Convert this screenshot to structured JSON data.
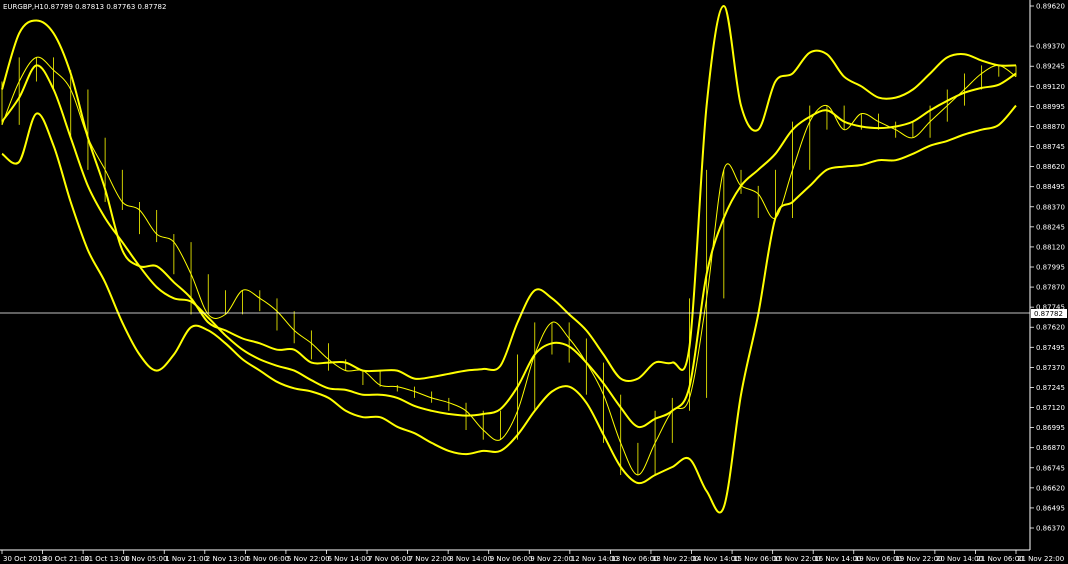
{
  "header": {
    "symbol": "EURGBP,H1",
    "ohlc": "0.87789 0.87813 0.87763 0.87782"
  },
  "price_marker": "0.87782",
  "colors": {
    "background": "#000000",
    "series": "#ffff00",
    "text": "#ffffff",
    "grid": "#ffffff"
  },
  "chart_data": {
    "type": "line",
    "title": "EURGBP,H1",
    "grid": false,
    "y_axis_position": "right",
    "ylim": [
      0.8637,
      0.8962
    ],
    "y_ticks": [
      "0.89620",
      "0.89370",
      "0.89245",
      "0.89120",
      "0.88995",
      "0.88870",
      "0.88745",
      "0.88620",
      "0.88495",
      "0.88370",
      "0.88245",
      "0.88120",
      "0.87995",
      "0.87870",
      "0.87745",
      "0.87620",
      "0.87495",
      "0.87370",
      "0.87245",
      "0.87120",
      "0.86995",
      "0.86870",
      "0.86745",
      "0.86620",
      "0.86495",
      "0.86370"
    ],
    "x_ticks": [
      "30 Oct 2018",
      "30 Oct 21:00",
      "31 Oct 13:00",
      "1 Nov 05:00",
      "1 Nov 21:00",
      "2 Nov 13:00",
      "5 Nov 06:00",
      "5 Nov 22:00",
      "6 Nov 14:00",
      "7 Nov 06:00",
      "7 Nov 22:00",
      "8 Nov 14:00",
      "9 Nov 06:00",
      "9 Nov 22:00",
      "12 Nov 14:00",
      "13 Nov 06:00",
      "13 Nov 22:00",
      "14 Nov 14:00",
      "15 Nov 06:00",
      "15 Nov 22:00",
      "16 Nov 14:00",
      "19 Nov 06:00",
      "19 Nov 22:00",
      "20 Nov 14:00",
      "21 Nov 06:00",
      "21 Nov 22:00"
    ],
    "current_price": 0.87782,
    "series": [
      {
        "values": [
          0.8888,
          0.8915,
          0.893,
          0.8922,
          0.891,
          0.888,
          0.886,
          0.884,
          0.8835,
          0.882,
          0.8815,
          0.8795,
          0.877,
          0.877,
          0.8785,
          0.878,
          0.8772,
          0.876,
          0.8752,
          0.8742,
          0.8735,
          0.8735,
          0.8726,
          0.8725,
          0.8722,
          0.8718,
          0.8715,
          0.871,
          0.8698,
          0.8692,
          0.871,
          0.8745,
          0.8765,
          0.8755,
          0.874,
          0.872,
          0.869,
          0.867,
          0.869,
          0.871,
          0.8718,
          0.878,
          0.886,
          0.885,
          0.8845,
          0.883,
          0.886,
          0.889,
          0.89,
          0.8885,
          0.8895,
          0.889,
          0.8885,
          0.888,
          0.889,
          0.89,
          0.891,
          0.892,
          0.8925,
          0.8918
        ]
      },
      {
        "values": [
          0.889,
          0.8905,
          0.8925,
          0.891,
          0.888,
          0.885,
          0.883,
          0.8815,
          0.88,
          0.8787,
          0.878,
          0.8778,
          0.8768,
          0.8757,
          0.8748,
          0.8742,
          0.8738,
          0.8735,
          0.8729,
          0.8724,
          0.8723,
          0.872,
          0.872,
          0.8718,
          0.8713,
          0.871,
          0.8708,
          0.8707,
          0.8708,
          0.8711,
          0.8725,
          0.8745,
          0.8752,
          0.875,
          0.874,
          0.8727,
          0.8712,
          0.87,
          0.8705,
          0.871,
          0.8725,
          0.8795,
          0.883,
          0.885,
          0.886,
          0.887,
          0.8885,
          0.8893,
          0.8897,
          0.889,
          0.8887,
          0.8886,
          0.8887,
          0.889,
          0.8897,
          0.8903,
          0.8908,
          0.8911,
          0.8913,
          0.892
        ]
      },
      {
        "values": [
          0.891,
          0.8945,
          0.8953,
          0.8945,
          0.892,
          0.888,
          0.8848,
          0.881,
          0.88,
          0.88,
          0.879,
          0.878,
          0.8765,
          0.876,
          0.8755,
          0.8752,
          0.8748,
          0.8748,
          0.874,
          0.874,
          0.874,
          0.8735,
          0.8735,
          0.8735,
          0.873,
          0.8731,
          0.8733,
          0.8735,
          0.8736,
          0.8738,
          0.8765,
          0.8785,
          0.878,
          0.877,
          0.876,
          0.8745,
          0.873,
          0.873,
          0.874,
          0.874,
          0.875,
          0.89,
          0.8962,
          0.89,
          0.8885,
          0.8915,
          0.892,
          0.8933,
          0.8932,
          0.8918,
          0.8912,
          0.8905,
          0.8905,
          0.891,
          0.892,
          0.893,
          0.8932,
          0.8928,
          0.8925,
          0.8925
        ]
      },
      {
        "values": [
          0.887,
          0.8865,
          0.8895,
          0.8875,
          0.884,
          0.881,
          0.879,
          0.8765,
          0.8745,
          0.8735,
          0.8745,
          0.8762,
          0.876,
          0.8752,
          0.8742,
          0.8735,
          0.8728,
          0.8724,
          0.8722,
          0.8718,
          0.871,
          0.8706,
          0.8706,
          0.87,
          0.8696,
          0.869,
          0.8685,
          0.8683,
          0.8685,
          0.8685,
          0.8695,
          0.871,
          0.8722,
          0.8725,
          0.8715,
          0.8695,
          0.8675,
          0.8665,
          0.867,
          0.8675,
          0.868,
          0.866,
          0.865,
          0.872,
          0.877,
          0.883,
          0.884,
          0.885,
          0.886,
          0.8862,
          0.8863,
          0.8866,
          0.8866,
          0.887,
          0.8875,
          0.8878,
          0.8882,
          0.8885,
          0.8888,
          0.89
        ]
      }
    ]
  }
}
